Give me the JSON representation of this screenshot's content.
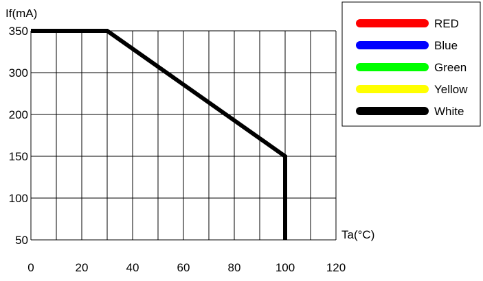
{
  "chart_data": {
    "type": "line",
    "ylabel": "If(mA)",
    "xlabel": "Ta(°C)",
    "xlim": [
      0,
      120
    ],
    "x_ticks": [
      0,
      20,
      40,
      60,
      80,
      100,
      120
    ],
    "y_tick_labels": [
      "350",
      "300",
      "200",
      "150",
      "100",
      "50"
    ],
    "grid": true,
    "legend_position": "top-right",
    "legend": [
      {
        "name": "RED",
        "color": "#ff0000"
      },
      {
        "name": "Blue",
        "color": "#0000ff"
      },
      {
        "name": "Green",
        "color": "#00ff00"
      },
      {
        "name": "Yellow",
        "color": "#ffff00"
      },
      {
        "name": "White",
        "color": "#000000"
      }
    ],
    "series": [
      {
        "name": "White",
        "color": "#000000",
        "points": [
          {
            "x": 0,
            "y": 350
          },
          {
            "x": 30,
            "y": 350
          },
          {
            "x": 100,
            "y": 150
          },
          {
            "x": 100,
            "y": 50
          }
        ]
      }
    ]
  }
}
